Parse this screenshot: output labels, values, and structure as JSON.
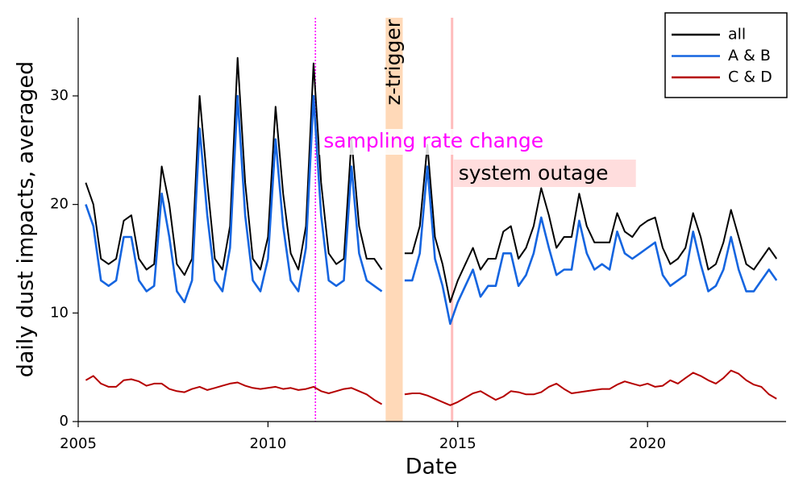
{
  "chart_data": {
    "type": "line",
    "xlabel": "Date",
    "ylabel": "daily dust impacts, averaged",
    "x": [
      2005.2,
      2005.4,
      2005.6,
      2005.8,
      2006.0,
      2006.2,
      2006.4,
      2006.6,
      2006.8,
      2007.0,
      2007.2,
      2007.4,
      2007.6,
      2007.8,
      2008.0,
      2008.2,
      2008.4,
      2008.6,
      2008.8,
      2009.0,
      2009.2,
      2009.4,
      2009.6,
      2009.8,
      2010.0,
      2010.2,
      2010.4,
      2010.6,
      2010.8,
      2011.0,
      2011.2,
      2011.4,
      2011.6,
      2011.8,
      2012.0,
      2012.2,
      2012.4,
      2012.6,
      2012.8,
      2013.0,
      2013.2,
      2013.4,
      2013.6,
      2013.8,
      2014.0,
      2014.2,
      2014.4,
      2014.6,
      2014.8,
      2015.0,
      2015.2,
      2015.4,
      2015.6,
      2015.8,
      2016.0,
      2016.2,
      2016.4,
      2016.6,
      2016.8,
      2017.0,
      2017.2,
      2017.4,
      2017.6,
      2017.8,
      2018.0,
      2018.2,
      2018.4,
      2018.6,
      2018.8,
      2019.0,
      2019.2,
      2019.4,
      2019.6,
      2019.8,
      2020.0,
      2020.2,
      2020.4,
      2020.6,
      2020.8,
      2021.0,
      2021.2,
      2021.4,
      2021.6,
      2021.8,
      2022.0,
      2022.2,
      2022.4,
      2022.6,
      2022.8,
      2023.0,
      2023.2,
      2023.4
    ],
    "series": [
      {
        "name": "all",
        "color": "#000000",
        "values": [
          22,
          20,
          15,
          14.5,
          15,
          18.5,
          19,
          15,
          14,
          14.5,
          23.5,
          20,
          14.5,
          13.5,
          15,
          30,
          22,
          15,
          14,
          18,
          33.5,
          22,
          15,
          14,
          17,
          29,
          21,
          15.5,
          14,
          18,
          33,
          22,
          15.5,
          14.5,
          15,
          26,
          18,
          15,
          15,
          14,
          null,
          null,
          15.5,
          15.5,
          18,
          25.5,
          17,
          14.5,
          11,
          13,
          14.5,
          16,
          14,
          15,
          15,
          17.5,
          18,
          15,
          16,
          18,
          21.5,
          19,
          16,
          17,
          17,
          21,
          18,
          16.5,
          16.5,
          16.5,
          19.2,
          17.5,
          17,
          18,
          18.5,
          18.8,
          16,
          14.5,
          15,
          16,
          19.2,
          17,
          14,
          14.5,
          16.5,
          19.5,
          17,
          14.5,
          14,
          15,
          16,
          15
        ]
      },
      {
        "name": "A & B",
        "color": "#1565e0",
        "values": [
          20,
          18,
          13,
          12.5,
          13,
          17,
          17,
          13,
          12,
          12.5,
          21,
          17,
          12,
          11,
          13,
          27,
          19,
          13,
          12,
          16,
          30,
          19,
          13,
          12,
          15,
          26,
          18,
          13,
          12,
          16,
          30,
          19,
          13,
          12.5,
          13,
          23.5,
          15.5,
          13,
          12.5,
          12,
          null,
          null,
          13,
          13,
          15.5,
          23.5,
          15,
          12.5,
          9,
          11,
          12.5,
          14,
          11.5,
          12.5,
          12.5,
          15.5,
          15.5,
          12.5,
          13.5,
          15.5,
          18.8,
          16,
          13.5,
          14,
          14,
          18.5,
          15.5,
          14,
          14.5,
          14,
          17.5,
          15.5,
          15,
          15.5,
          16,
          16.5,
          13.5,
          12.5,
          13,
          13.5,
          17.5,
          14.5,
          12,
          12.5,
          14,
          17,
          14,
          12,
          12,
          13,
          14,
          13
        ]
      },
      {
        "name": "C & D",
        "color": "#b50000",
        "values": [
          3.8,
          4.2,
          3.5,
          3.2,
          3.2,
          3.8,
          3.9,
          3.7,
          3.3,
          3.5,
          3.5,
          3.0,
          2.8,
          2.7,
          3.0,
          3.2,
          2.9,
          3.1,
          3.3,
          3.5,
          3.6,
          3.3,
          3.1,
          3.0,
          3.1,
          3.2,
          3.0,
          3.1,
          2.9,
          3.0,
          3.2,
          2.8,
          2.6,
          2.8,
          3.0,
          3.1,
          2.8,
          2.5,
          2.0,
          1.6,
          null,
          null,
          2.5,
          2.6,
          2.6,
          2.4,
          2.1,
          1.8,
          1.5,
          1.8,
          2.2,
          2.6,
          2.8,
          2.4,
          2.0,
          2.3,
          2.8,
          2.7,
          2.5,
          2.5,
          2.7,
          3.2,
          3.5,
          3.0,
          2.6,
          2.7,
          2.8,
          2.9,
          3.0,
          3.0,
          3.4,
          3.7,
          3.5,
          3.3,
          3.5,
          3.2,
          3.3,
          3.8,
          3.5,
          4.0,
          4.5,
          4.2,
          3.8,
          3.5,
          4.0,
          4.7,
          4.4,
          3.8,
          3.4,
          3.2,
          2.5,
          2.1
        ]
      }
    ],
    "xlim": [
      2005,
      2023.65
    ],
    "xticks": [
      2005,
      2010,
      2015,
      2020
    ],
    "ylim": [
      0,
      37.2
    ],
    "yticks": [
      0,
      10,
      20,
      30
    ],
    "legend": "upper right",
    "annotations": [
      {
        "label": "sampling rate change",
        "x": 2011.25,
        "color": "#ff00ff"
      },
      {
        "label": "z-trigger",
        "x": [
          2013.1,
          2013.55
        ],
        "color": "#ffd9b8"
      },
      {
        "label": "system outage",
        "x": 2014.85,
        "color": "#ffbcbc"
      }
    ]
  }
}
